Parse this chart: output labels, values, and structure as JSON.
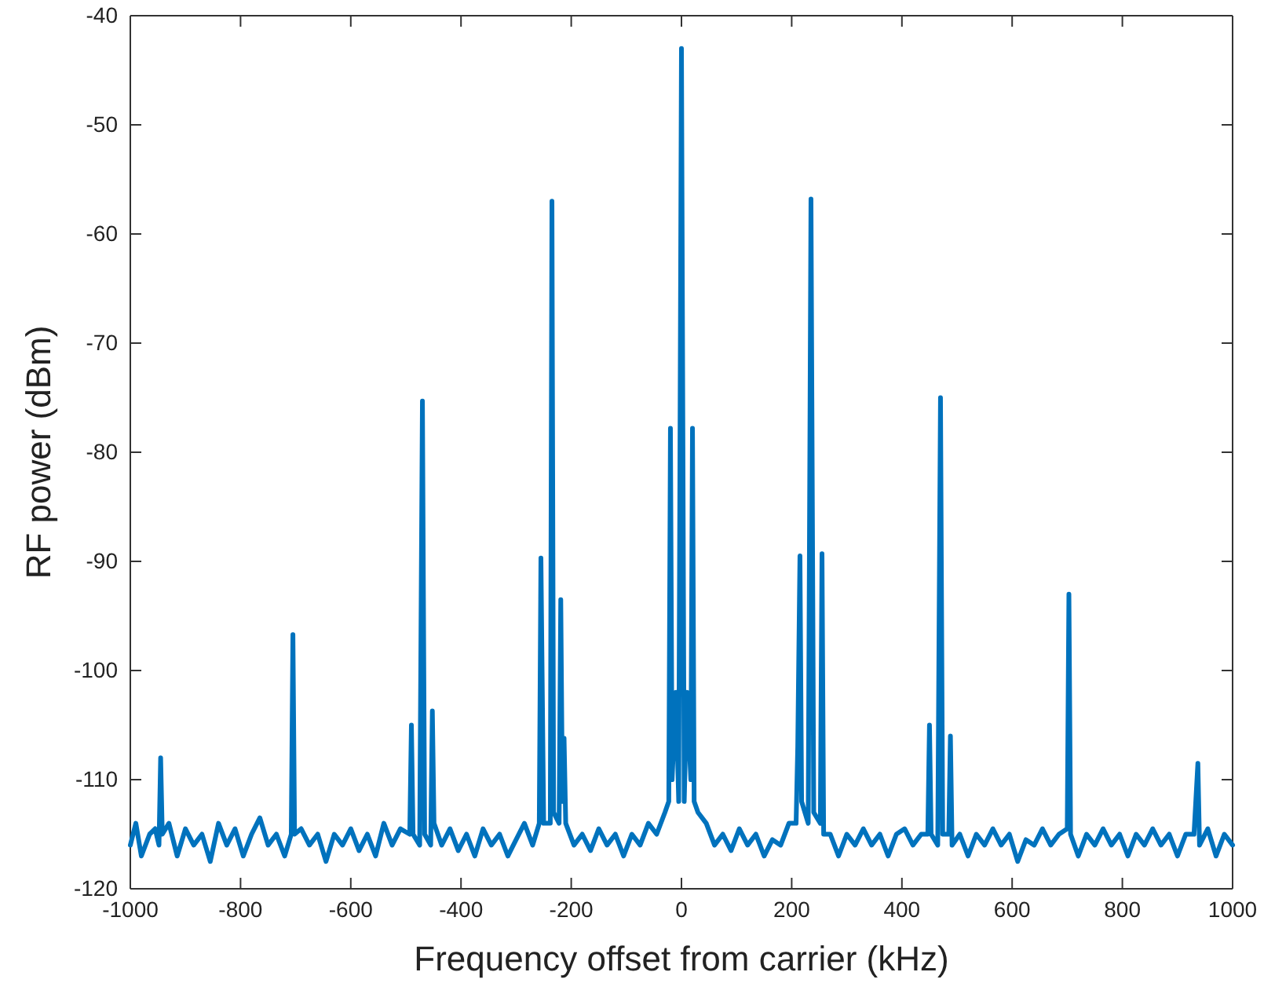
{
  "chart_data": {
    "type": "line",
    "xlabel": "Frequency offset from carrier (kHz)",
    "ylabel": "RF power (dBm)",
    "xlim": [
      -1000,
      1000
    ],
    "xticks": [
      -1000,
      -800,
      -600,
      -400,
      -200,
      0,
      200,
      400,
      600,
      800,
      1000
    ],
    "ylim": [
      -120,
      -40
    ],
    "yticks": [
      -120,
      -110,
      -100,
      -90,
      -80,
      -70,
      -60,
      -50,
      -40
    ],
    "grid": false,
    "marker": "none",
    "line_style": "solid",
    "series": [
      {
        "color": "#0072bd",
        "x": [
          -1000,
          -990,
          -980,
          -965,
          -955,
          -948,
          -945,
          -942,
          -930,
          -915,
          -900,
          -885,
          -870,
          -855,
          -840,
          -825,
          -810,
          -795,
          -780,
          -765,
          -750,
          -735,
          -720,
          -708,
          -705,
          -702,
          -690,
          -675,
          -660,
          -645,
          -630,
          -615,
          -600,
          -585,
          -570,
          -555,
          -540,
          -525,
          -510,
          -493,
          -490,
          -487,
          -475,
          -470,
          -466,
          -455,
          -452,
          -449,
          -435,
          -420,
          -405,
          -390,
          -375,
          -360,
          -345,
          -330,
          -315,
          -300,
          -285,
          -270,
          -258,
          -255,
          -250,
          -238,
          -235,
          -232,
          -222,
          -219,
          -216,
          -213,
          -210,
          -195,
          -180,
          -165,
          -150,
          -135,
          -120,
          -105,
          -90,
          -75,
          -60,
          -45,
          -30,
          -23,
          -20,
          -17,
          -10,
          -5,
          0,
          5,
          10,
          17,
          20,
          23,
          30,
          45,
          60,
          75,
          90,
          105,
          120,
          135,
          150,
          165,
          180,
          195,
          208,
          211,
          215,
          218,
          230,
          235,
          240,
          252,
          255,
          258,
          270,
          285,
          300,
          315,
          330,
          345,
          360,
          375,
          390,
          405,
          420,
          435,
          447,
          450,
          453,
          465,
          470,
          474,
          485,
          488,
          491,
          505,
          520,
          535,
          550,
          565,
          580,
          595,
          610,
          625,
          640,
          655,
          670,
          685,
          700,
          703,
          706,
          720,
          735,
          750,
          765,
          780,
          795,
          810,
          825,
          840,
          855,
          870,
          885,
          900,
          915,
          930,
          937,
          940,
          955,
          970,
          985,
          1000
        ],
        "values": [
          -116,
          -114,
          -117,
          -115,
          -114.5,
          -116,
          -108,
          -115,
          -114,
          -117,
          -114.5,
          -116,
          -115,
          -117.5,
          -114,
          -116,
          -114.5,
          -117,
          -115,
          -113.5,
          -116,
          -115,
          -117,
          -115,
          -96.7,
          -115,
          -114.5,
          -116,
          -115,
          -117.5,
          -115,
          -116,
          -114.5,
          -116.5,
          -115,
          -117,
          -114,
          -116,
          -114.5,
          -115,
          -105,
          -115,
          -116,
          -75.3,
          -115,
          -116,
          -103.7,
          -114,
          -116,
          -114.5,
          -116.5,
          -115,
          -117,
          -114.5,
          -116,
          -115,
          -117,
          -115.5,
          -114,
          -116,
          -114,
          -89.7,
          -114,
          -114,
          -57,
          -113,
          -114,
          -93.5,
          -112,
          -106.2,
          -114,
          -116,
          -115,
          -116.5,
          -114.5,
          -116,
          -115,
          -117,
          -115,
          -116,
          -114,
          -115,
          -113,
          -112,
          -77.8,
          -110,
          -102,
          -112,
          -43,
          -112,
          -102,
          -110,
          -77.8,
          -112,
          -113,
          -114,
          -116,
          -115,
          -116.5,
          -114.5,
          -116,
          -115,
          -117,
          -115.5,
          -116,
          -114,
          -114,
          -107,
          -89.5,
          -112,
          -114,
          -56.8,
          -113,
          -114,
          -89.3,
          -115,
          -115,
          -117,
          -115,
          -116,
          -114.5,
          -116,
          -115,
          -117,
          -115,
          -114.5,
          -116,
          -115,
          -115,
          -105,
          -115,
          -116,
          -75,
          -115,
          -115,
          -106,
          -116,
          -115,
          -117,
          -115,
          -116,
          -114.5,
          -116,
          -115,
          -117.5,
          -115.5,
          -116,
          -114.5,
          -116,
          -115,
          -114.5,
          -93,
          -115,
          -117,
          -115,
          -116,
          -114.5,
          -116,
          -115,
          -117,
          -115,
          -116,
          -114.5,
          -116,
          -115,
          -117,
          -115,
          -115,
          -108.5,
          -116,
          -114.5,
          -117,
          -115,
          -116
        ]
      }
    ]
  }
}
